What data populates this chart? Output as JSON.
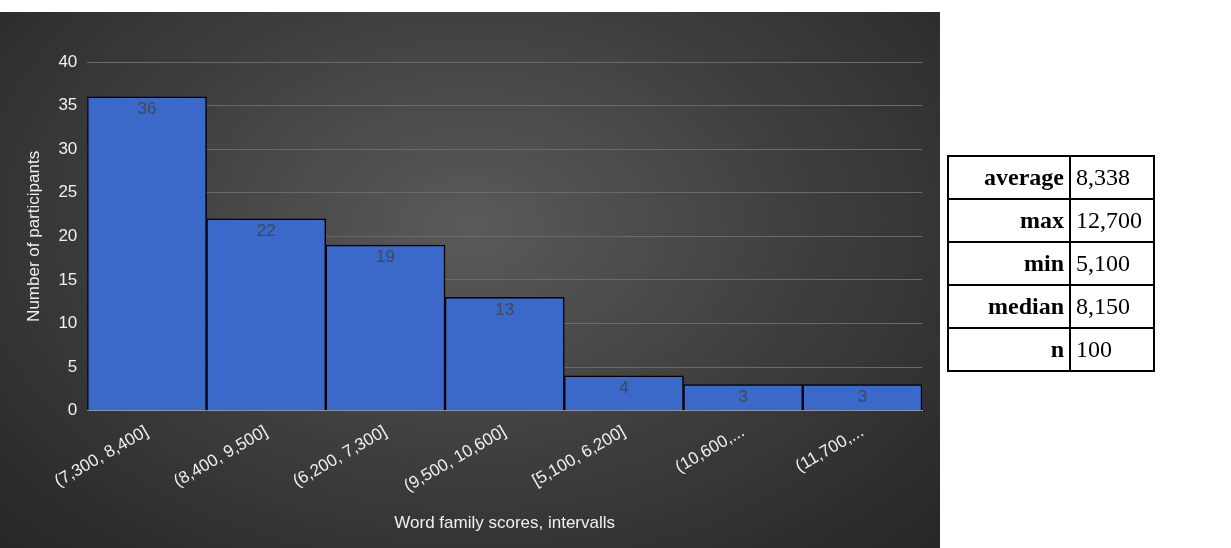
{
  "chart_data": {
    "type": "bar",
    "xlabel": "Word family scores, intervalls",
    "ylabel": "Number of participants",
    "categories": [
      "(7,300, 8,400]",
      "(8,400, 9,500]",
      "(6,200, 7,300]",
      "(9,500, 10,600]",
      "[5,100, 6,200]",
      "(10,600,...",
      "(11,700,..."
    ],
    "values": [
      36,
      22,
      19,
      13,
      4,
      3,
      3
    ],
    "color": "#3a69c9",
    "data_labels": true,
    "ylim": [
      0,
      40
    ],
    "yticks": [
      0,
      5,
      10,
      15,
      20,
      25,
      30,
      35,
      40
    ],
    "grid": "y",
    "legend": false,
    "annotations": [
      "average 8,338",
      "max 12,700",
      "min 5,100",
      "median 8,150",
      "n 100"
    ]
  }
}
